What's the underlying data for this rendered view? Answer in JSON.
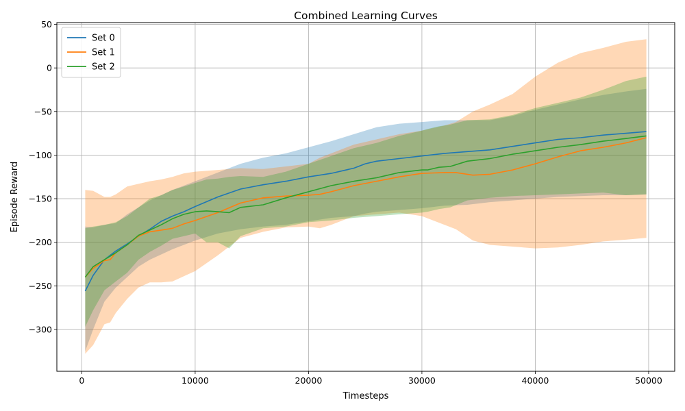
{
  "chart_data": {
    "type": "line",
    "title": "Combined Learning Curves",
    "xlabel": "Timesteps",
    "ylabel": "Episode Reward",
    "xlim": [
      -2200,
      52300
    ],
    "ylim": [
      -348,
      52
    ],
    "xticks": [
      0,
      10000,
      20000,
      30000,
      40000,
      50000
    ],
    "yticks": [
      -300,
      -250,
      -200,
      -150,
      -100,
      -50,
      0,
      50
    ],
    "grid": true,
    "legend_position": "top-left",
    "series": [
      {
        "name": "Set 0",
        "color": "#1f77b4",
        "band_color": "#a6c8e4",
        "x": [
          300,
          1000,
          2000,
          3000,
          4000,
          5000,
          6000,
          7000,
          8000,
          9000,
          10000,
          12000,
          14000,
          16000,
          18000,
          20000,
          22000,
          24000,
          25000,
          26000,
          28000,
          30000,
          32000,
          34000,
          36000,
          38000,
          40000,
          42000,
          44000,
          46000,
          48000,
          49800
        ],
        "y": [
          -256,
          -238,
          -220,
          -210,
          -202,
          -193,
          -185,
          -176,
          -170,
          -165,
          -159,
          -148,
          -139,
          -134,
          -130,
          -125,
          -121,
          -115,
          -110,
          -107,
          -104,
          -101,
          -98,
          -96,
          -94,
          -90,
          -86,
          -82,
          -80,
          -77,
          -75,
          -73
        ],
        "upper": [
          -182,
          -183,
          -180,
          -178,
          -168,
          -160,
          -152,
          -146,
          -140,
          -135,
          -130,
          -120,
          -110,
          -103,
          -98,
          -91,
          -84,
          -76,
          -72,
          -68,
          -64,
          -62,
          -60,
          -60,
          -60,
          -55,
          -48,
          -42,
          -36,
          -31,
          -27,
          -24
        ],
        "lower": [
          -325,
          -300,
          -268,
          -252,
          -240,
          -228,
          -220,
          -214,
          -208,
          -203,
          -198,
          -190,
          -185,
          -182,
          -180,
          -176,
          -172,
          -170,
          -167,
          -165,
          -163,
          -161,
          -158,
          -157,
          -154,
          -152,
          -150,
          -148,
          -147,
          -146,
          -146,
          -145
        ]
      },
      {
        "name": "Set 1",
        "color": "#ff7f0e",
        "band_color": "#ffcc9e",
        "x": [
          300,
          1000,
          2000,
          2500,
          3000,
          4000,
          5000,
          6000,
          7000,
          8000,
          9000,
          10000,
          12000,
          14000,
          16000,
          18000,
          20000,
          21000,
          22000,
          24000,
          26000,
          28000,
          30000,
          32000,
          33000,
          34500,
          36000,
          38000,
          40000,
          42000,
          44000,
          46000,
          48000,
          49800
        ],
        "y": [
          -240,
          -230,
          -221,
          -220,
          -212,
          -203,
          -193,
          -188,
          -186,
          -184,
          -179,
          -175,
          -166,
          -155,
          -149,
          -147,
          -146,
          -145,
          -142,
          -135,
          -130,
          -125,
          -121,
          -120,
          -120,
          -123,
          -122,
          -117,
          -110,
          -102,
          -95,
          -91,
          -86,
          -80
        ],
        "upper": [
          -140,
          -141,
          -148,
          -148,
          -145,
          -136,
          -133,
          -130,
          -128,
          -125,
          -121,
          -119,
          -117,
          -115,
          -116,
          -113,
          -110,
          -103,
          -98,
          -88,
          -82,
          -76,
          -72,
          -66,
          -62,
          -50,
          -42,
          -30,
          -10,
          6,
          17,
          23,
          30,
          33
        ],
        "lower": [
          -328,
          -318,
          -294,
          -292,
          -281,
          -265,
          -252,
          -246,
          -246,
          -245,
          -239,
          -233,
          -215,
          -195,
          -188,
          -183,
          -182,
          -184,
          -180,
          -170,
          -168,
          -166,
          -170,
          -180,
          -185,
          -198,
          -203,
          -205,
          -207,
          -206,
          -203,
          -199,
          -197,
          -195
        ]
      },
      {
        "name": "Set 2",
        "color": "#2ca02c",
        "band_color": "#9ecf8e",
        "x": [
          300,
          1000,
          2000,
          3000,
          4000,
          5000,
          6000,
          7000,
          8000,
          9000,
          10000,
          11000,
          12000,
          13000,
          14000,
          16000,
          18000,
          20000,
          22000,
          24000,
          26000,
          28000,
          30000,
          30500,
          31500,
          32500,
          34000,
          36000,
          38000,
          40000,
          42000,
          44000,
          46000,
          48000,
          49800
        ],
        "y": [
          -240,
          -228,
          -220,
          -212,
          -203,
          -192,
          -186,
          -180,
          -173,
          -168,
          -165,
          -164,
          -165,
          -166,
          -160,
          -157,
          -149,
          -142,
          -135,
          -130,
          -126,
          -120,
          -117,
          -117,
          -114,
          -113,
          -107,
          -104,
          -99,
          -95,
          -91,
          -88,
          -84,
          -81,
          -78
        ],
        "upper": [
          -184,
          -182,
          -180,
          -177,
          -170,
          -160,
          -150,
          -146,
          -140,
          -136,
          -132,
          -128,
          -127,
          -125,
          -124,
          -125,
          -119,
          -110,
          -101,
          -92,
          -86,
          -78,
          -72,
          -70,
          -67,
          -65,
          -60,
          -59,
          -54,
          -46,
          -40,
          -34,
          -25,
          -15,
          -10
        ],
        "lower": [
          -297,
          -278,
          -255,
          -245,
          -235,
          -220,
          -211,
          -204,
          -196,
          -193,
          -190,
          -200,
          -200,
          -207,
          -193,
          -184,
          -182,
          -177,
          -175,
          -172,
          -170,
          -168,
          -166,
          -165,
          -162,
          -160,
          -152,
          -149,
          -147,
          -146,
          -145,
          -144,
          -143,
          -146,
          -145
        ]
      }
    ]
  }
}
